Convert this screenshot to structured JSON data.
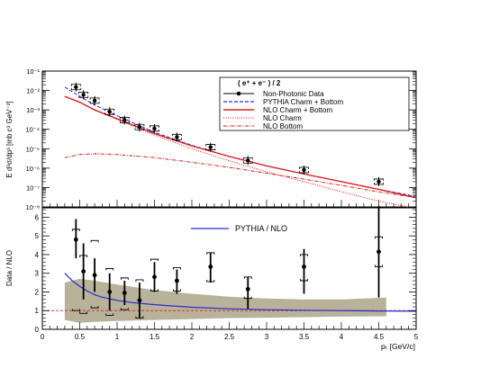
{
  "chart_data": [
    {
      "type": "scatter",
      "title": "",
      "ylabel": "E d³σ/dp³ [mb c³ GeV⁻²]",
      "xlabel": "",
      "log_y": true,
      "xlim": [
        0,
        5
      ],
      "ylim_exp": [
        -8,
        -1
      ],
      "ytick_labels": [
        "10⁻⁸",
        "10⁻⁷",
        "10⁻⁶",
        "10⁻⁵",
        "10⁻⁴",
        "10⁻³",
        "10⁻²",
        "10⁻¹"
      ],
      "legend_header": "( e⁺ + e⁻ ) / 2",
      "legend_position": "top-right",
      "series": [
        {
          "name": "Non-Photonic Data",
          "kind": "points",
          "color": "#000000",
          "x": [
            0.45,
            0.55,
            0.7,
            0.9,
            1.1,
            1.3,
            1.5,
            1.8,
            2.25,
            2.75,
            3.5,
            4.5
          ],
          "y": [
            0.015,
            0.006,
            0.003,
            0.0008,
            0.0003,
            0.00013,
            0.00011,
            4e-05,
            1.2e-05,
            2.5e-06,
            8e-07,
            2e-07
          ]
        },
        {
          "name": "PYTHIA Charm + Bottom",
          "kind": "dashed",
          "color": "#2a2ad0",
          "x": [
            0.3,
            0.5,
            0.7,
            1.0,
            1.5,
            2.0,
            2.5,
            3.0,
            3.5,
            4.0,
            4.5,
            5.0
          ],
          "y": [
            0.015,
            0.005,
            0.0018,
            0.0005,
            7e-05,
            1.5e-05,
            4e-06,
            1.3e-06,
            5e-07,
            2e-07,
            8e-08,
            3.5e-08
          ]
        },
        {
          "name": "NLO Charm + Bottom",
          "kind": "solid",
          "color": "#e01818",
          "x": [
            0.3,
            0.5,
            0.7,
            1.0,
            1.5,
            2.0,
            2.5,
            3.0,
            3.5,
            4.0,
            4.5,
            5.0
          ],
          "y": [
            0.005,
            0.0025,
            0.001,
            0.00035,
            6e-05,
            1.4e-05,
            4e-06,
            1.3e-06,
            5e-07,
            2e-07,
            8e-08,
            3e-08
          ]
        },
        {
          "name": "NLO Charm",
          "kind": "dotted",
          "color": "#e01818",
          "x": [
            0.3,
            0.5,
            0.7,
            1.0,
            1.5,
            2.0,
            2.5,
            3.0,
            3.5,
            4.0,
            4.5,
            5.0
          ],
          "y": [
            0.005,
            0.0024,
            0.00095,
            0.00032,
            5e-05,
            1e-05,
            2.4e-06,
            6.5e-07,
            2e-07,
            6e-08,
            2e-08,
            8e-09
          ]
        },
        {
          "name": "NLO Bottom",
          "kind": "dashdot",
          "color": "#e01818",
          "x": [
            0.3,
            0.5,
            0.7,
            1.0,
            1.5,
            2.0,
            2.5,
            3.0,
            3.5,
            4.0,
            4.5,
            5.0
          ],
          "y": [
            3.5e-06,
            5e-06,
            5.5e-06,
            5e-06,
            3.5e-06,
            2e-06,
            1.1e-06,
            5.5e-07,
            2.7e-07,
            1.3e-07,
            6e-08,
            3e-08
          ]
        }
      ]
    },
    {
      "type": "scatter",
      "title": "",
      "ylabel": "Data / NLO",
      "xlabel": "pₜ [GeV/c]",
      "xlim": [
        0,
        5
      ],
      "ylim": [
        0,
        6.5
      ],
      "xticks": [
        0,
        0.5,
        1,
        1.5,
        2,
        2.5,
        3,
        3.5,
        4,
        4.5,
        5
      ],
      "xtick_labels": [
        "0",
        "0.5",
        "1",
        "1.5",
        "2",
        "2.5",
        "3",
        "3.5",
        "4",
        "4.5",
        "5"
      ],
      "yticks": [
        0,
        1,
        2,
        3,
        4,
        5,
        6
      ],
      "ytick_labels": [
        "0",
        "1",
        "2",
        "3",
        "4",
        "5",
        "6"
      ],
      "legend_label": "PYTHIA / NLO",
      "legend_position": "top-center",
      "reference_line": 1,
      "band": {
        "color": "#b8b29a",
        "x": [
          0.3,
          0.5,
          0.7,
          1.0,
          1.5,
          2.0,
          2.5,
          3.0,
          3.5,
          4.0,
          4.6
        ],
        "lower": [
          0.5,
          0.35,
          0.4,
          0.45,
          0.5,
          0.55,
          0.6,
          0.62,
          0.65,
          0.68,
          0.7
        ],
        "upper": [
          2.5,
          2.7,
          2.6,
          2.4,
          2.1,
          1.9,
          1.75,
          1.65,
          1.6,
          1.6,
          1.7
        ]
      },
      "pythia_ratio": {
        "name": "PYTHIA / NLO",
        "color": "#2a2ad0",
        "x": [
          0.3,
          0.4,
          0.5,
          0.6,
          0.7,
          0.8,
          1.0,
          1.2,
          1.5,
          2.0,
          2.5,
          3.0,
          3.5,
          4.0,
          4.5,
          5.0
        ],
        "y": [
          3.0,
          2.6,
          2.3,
          2.05,
          1.85,
          1.72,
          1.55,
          1.43,
          1.32,
          1.18,
          1.1,
          1.05,
          1.02,
          1.0,
          0.98,
          0.97
        ]
      },
      "points": {
        "name": "Data / NLO",
        "color": "#000000",
        "x": [
          0.45,
          0.55,
          0.7,
          0.9,
          1.1,
          1.3,
          1.5,
          1.8,
          2.25,
          2.75,
          3.5,
          4.5
        ],
        "y": [
          4.8,
          3.1,
          2.9,
          2.0,
          1.95,
          1.55,
          2.8,
          2.6,
          3.35,
          2.15,
          3.35,
          4.15
        ],
        "stat_lo": [
          3.8,
          1.6,
          2.0,
          1.0,
          1.3,
          0.6,
          2.0,
          1.9,
          2.5,
          1.1,
          1.9,
          1.7
        ],
        "stat_hi": [
          5.9,
          4.6,
          3.8,
          3.0,
          2.6,
          2.5,
          3.6,
          3.2,
          4.1,
          2.8,
          4.3,
          6.6
        ],
        "sys_lo": [
          1.0,
          0.85,
          1.15,
          0.75,
          1.05,
          0.6,
          2.05,
          2.05,
          2.55,
          1.65,
          2.6,
          3.35
        ],
        "sys_hi": [
          5.35,
          3.95,
          4.75,
          3.25,
          2.75,
          2.65,
          3.75,
          3.3,
          4.1,
          2.8,
          4.0,
          4.95
        ]
      }
    }
  ]
}
